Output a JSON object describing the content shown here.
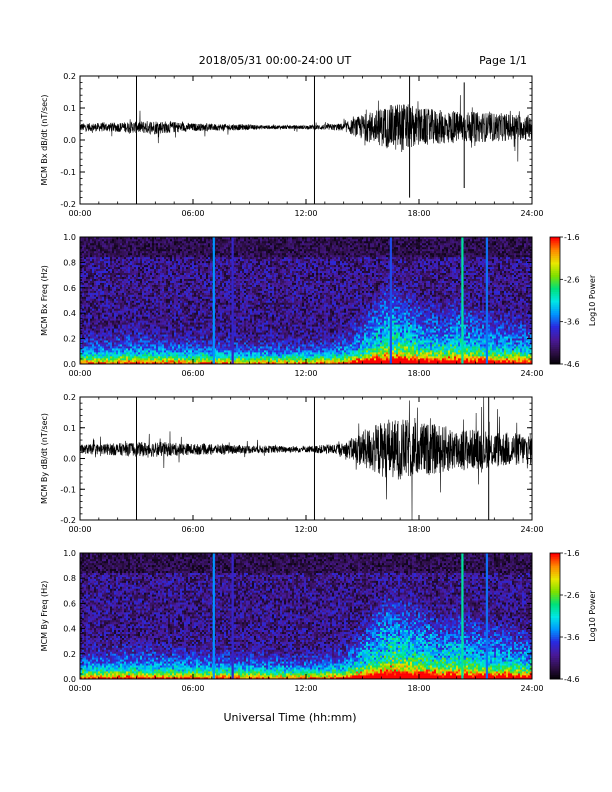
{
  "header": {
    "date_range": "2018/05/31  00:00-24:00 UT",
    "page": "Page 1/1"
  },
  "x_axis_label": "Universal Time (hh:mm)",
  "colors": {
    "colormap": [
      "#000000",
      "#30104a",
      "#4a1a9a",
      "#2a2ae0",
      "#0096ff",
      "#00e6e6",
      "#00e07a",
      "#7ee000",
      "#e8e800",
      "#ff8c00",
      "#ff0000"
    ],
    "trace": "#000000",
    "background": "#ffffff"
  },
  "chart_data": [
    {
      "type": "line",
      "ylabel": "MCM Bx dB/dt (nT/sec)",
      "xlim": [
        0,
        24
      ],
      "ylim": [
        -0.2,
        0.2
      ],
      "x_ticks": [
        "00:00",
        "06:00",
        "12:00",
        "18:00",
        "24:00"
      ],
      "y_ticks": [
        "0.2",
        "0.1",
        "0.0",
        "-0.1",
        "-0.2"
      ],
      "baseline": 0.04,
      "activity": [
        {
          "x": 0,
          "amp": 0.012
        },
        {
          "x": 2,
          "amp": 0.015
        },
        {
          "x": 4,
          "amp": 0.022
        },
        {
          "x": 6,
          "amp": 0.012
        },
        {
          "x": 8,
          "amp": 0.01
        },
        {
          "x": 10,
          "amp": 0.006
        },
        {
          "x": 12,
          "amp": 0.006
        },
        {
          "x": 14,
          "amp": 0.012
        },
        {
          "x": 15,
          "amp": 0.04
        },
        {
          "x": 16,
          "amp": 0.06
        },
        {
          "x": 17,
          "amp": 0.08
        },
        {
          "x": 18,
          "amp": 0.06
        },
        {
          "x": 20,
          "amp": 0.05
        },
        {
          "x": 22,
          "amp": 0.045
        },
        {
          "x": 24,
          "amp": 0.04
        }
      ],
      "spikes": [
        {
          "x": 3.0,
          "min": -0.2,
          "max": 0.2
        },
        {
          "x": 12.45,
          "min": -0.2,
          "max": 0.2
        },
        {
          "x": 17.5,
          "min": -0.18,
          "max": 0.2
        },
        {
          "x": 20.4,
          "min": -0.15,
          "max": 0.18
        }
      ]
    },
    {
      "type": "heatmap",
      "ylabel": "MCM Bx Freq (Hz)",
      "xlim": [
        0,
        24
      ],
      "ylim": [
        0,
        1.0
      ],
      "x_ticks": [
        "00:00",
        "06:00",
        "12:00",
        "18:00",
        "24:00"
      ],
      "y_ticks": [
        "1.0",
        "0.8",
        "0.6",
        "0.4",
        "0.2",
        "0.0"
      ],
      "colorbar_label": "Log10 Power",
      "colorbar_ticks": [
        "-1.6",
        "-2.6",
        "-3.6",
        "-4.6"
      ],
      "zlim": [
        -4.6,
        -1.6
      ],
      "activity": [
        {
          "x": 0,
          "level": 0.25
        },
        {
          "x": 3,
          "level": 0.3
        },
        {
          "x": 6,
          "level": 0.25
        },
        {
          "x": 9,
          "level": 0.22
        },
        {
          "x": 12,
          "level": 0.2
        },
        {
          "x": 14,
          "level": 0.28
        },
        {
          "x": 15,
          "level": 0.45
        },
        {
          "x": 16.5,
          "level": 0.7
        },
        {
          "x": 18,
          "level": 0.55
        },
        {
          "x": 19,
          "level": 0.5
        },
        {
          "x": 20,
          "level": 0.55
        },
        {
          "x": 22,
          "level": 0.45
        },
        {
          "x": 24,
          "level": 0.4
        }
      ],
      "stripes": [
        {
          "x": 7.1,
          "z": -3.4
        },
        {
          "x": 8.1,
          "z": -3.8
        },
        {
          "x": 16.5,
          "z": -3.6
        },
        {
          "x": 20.3,
          "z": -2.9
        },
        {
          "x": 21.6,
          "z": -3.5
        }
      ]
    },
    {
      "type": "line",
      "ylabel": "MCM By dB/dt (nT/sec)",
      "xlim": [
        0,
        24
      ],
      "ylim": [
        -0.2,
        0.2
      ],
      "x_ticks": [
        "00:00",
        "06:00",
        "12:00",
        "18:00",
        "24:00"
      ],
      "y_ticks": [
        "0.2",
        "0.1",
        "0.0",
        "-0.1",
        "-0.2"
      ],
      "baseline": 0.03,
      "activity": [
        {
          "x": 0,
          "amp": 0.015
        },
        {
          "x": 2,
          "amp": 0.02
        },
        {
          "x": 4,
          "amp": 0.025
        },
        {
          "x": 6,
          "amp": 0.018
        },
        {
          "x": 8,
          "amp": 0.015
        },
        {
          "x": 10,
          "amp": 0.012
        },
        {
          "x": 12,
          "amp": 0.01
        },
        {
          "x": 14,
          "amp": 0.02
        },
        {
          "x": 15,
          "amp": 0.06
        },
        {
          "x": 16,
          "amp": 0.09
        },
        {
          "x": 17,
          "amp": 0.1
        },
        {
          "x": 18,
          "amp": 0.09
        },
        {
          "x": 20,
          "amp": 0.07
        },
        {
          "x": 22,
          "amp": 0.06
        },
        {
          "x": 24,
          "amp": 0.05
        }
      ],
      "spikes": [
        {
          "x": 3.0,
          "min": -0.2,
          "max": 0.2
        },
        {
          "x": 12.45,
          "min": -0.2,
          "max": 0.2
        },
        {
          "x": 21.7,
          "min": -0.2,
          "max": 0.2
        }
      ]
    },
    {
      "type": "heatmap",
      "ylabel": "MCM By Freq (Hz)",
      "xlim": [
        0,
        24
      ],
      "ylim": [
        0,
        1.0
      ],
      "x_ticks": [
        "00:00",
        "06:00",
        "12:00",
        "18:00",
        "24:00"
      ],
      "y_ticks": [
        "1.0",
        "0.8",
        "0.6",
        "0.4",
        "0.2",
        "0.0"
      ],
      "colorbar_label": "Log10 Power",
      "colorbar_ticks": [
        "-1.6",
        "-2.6",
        "-3.6",
        "-4.6"
      ],
      "zlim": [
        -4.6,
        -1.6
      ],
      "activity": [
        {
          "x": 0,
          "level": 0.28
        },
        {
          "x": 3,
          "level": 0.32
        },
        {
          "x": 6,
          "level": 0.28
        },
        {
          "x": 9,
          "level": 0.26
        },
        {
          "x": 12,
          "level": 0.22
        },
        {
          "x": 14,
          "level": 0.3
        },
        {
          "x": 15,
          "level": 0.5
        },
        {
          "x": 16.5,
          "level": 0.75
        },
        {
          "x": 18,
          "level": 0.65
        },
        {
          "x": 19,
          "level": 0.55
        },
        {
          "x": 20,
          "level": 0.6
        },
        {
          "x": 22,
          "level": 0.5
        },
        {
          "x": 24,
          "level": 0.45
        }
      ],
      "stripes": [
        {
          "x": 7.1,
          "z": -3.4
        },
        {
          "x": 8.1,
          "z": -3.8
        },
        {
          "x": 20.3,
          "z": -2.9
        },
        {
          "x": 21.6,
          "z": -3.5
        }
      ]
    }
  ]
}
